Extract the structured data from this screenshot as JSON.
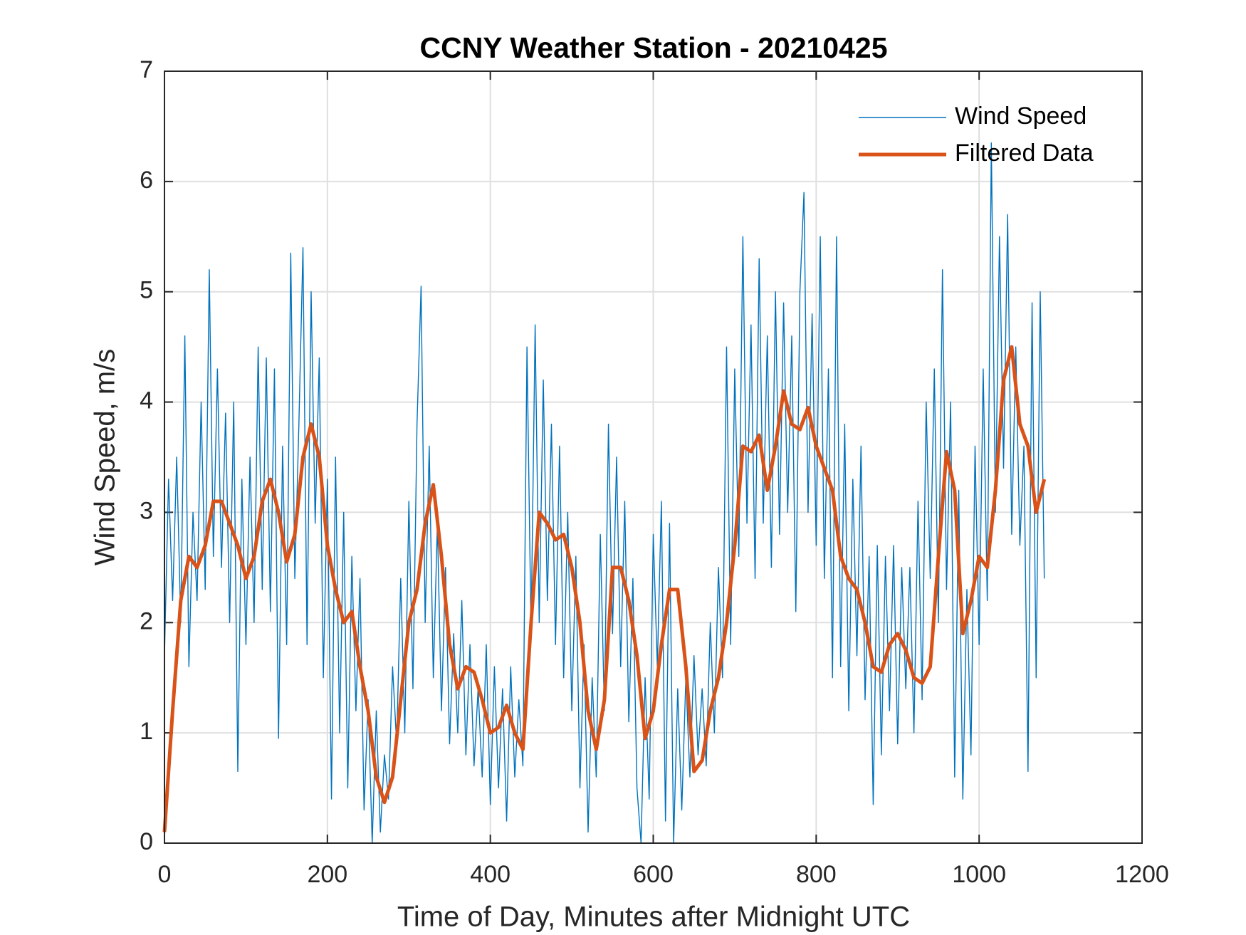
{
  "chart_data": {
    "type": "line",
    "title": "CCNY Weather Station - 20210425",
    "x_label": "Time of Day, Minutes after Midnight UTC",
    "y_label": "Wind Speed, m/s",
    "xlim": [
      0,
      1200
    ],
    "xticks": [
      0,
      200,
      400,
      600,
      800,
      1000,
      1200
    ],
    "ylim": [
      0,
      7
    ],
    "yticks": [
      0,
      1,
      2,
      3,
      4,
      5,
      6,
      7
    ],
    "grid": true,
    "legend": "northeast",
    "series": [
      {
        "name": "Wind Speed",
        "color": "#0072BD",
        "x": [
          0,
          5,
          10,
          15,
          20,
          25,
          30,
          35,
          40,
          45,
          50,
          55,
          60,
          65,
          70,
          75,
          80,
          85,
          90,
          95,
          100,
          105,
          110,
          115,
          120,
          125,
          130,
          135,
          140,
          145,
          150,
          155,
          160,
          165,
          170,
          175,
          180,
          185,
          190,
          195,
          200,
          205,
          210,
          215,
          220,
          225,
          230,
          235,
          240,
          245,
          250,
          255,
          260,
          265,
          270,
          275,
          280,
          285,
          290,
          295,
          300,
          305,
          310,
          315,
          320,
          325,
          330,
          335,
          340,
          345,
          350,
          355,
          360,
          365,
          370,
          375,
          380,
          385,
          390,
          395,
          400,
          405,
          410,
          415,
          420,
          425,
          430,
          435,
          440,
          445,
          450,
          455,
          460,
          465,
          470,
          475,
          480,
          485,
          490,
          495,
          500,
          505,
          510,
          515,
          520,
          525,
          530,
          535,
          540,
          545,
          550,
          555,
          560,
          565,
          570,
          575,
          580,
          585,
          590,
          595,
          600,
          605,
          610,
          615,
          620,
          625,
          630,
          635,
          640,
          645,
          650,
          655,
          660,
          665,
          670,
          675,
          680,
          685,
          690,
          695,
          700,
          705,
          710,
          715,
          720,
          725,
          730,
          735,
          740,
          745,
          750,
          755,
          760,
          765,
          770,
          775,
          780,
          785,
          790,
          795,
          800,
          805,
          810,
          815,
          820,
          825,
          830,
          835,
          840,
          845,
          850,
          855,
          860,
          865,
          870,
          875,
          880,
          885,
          890,
          895,
          900,
          905,
          910,
          915,
          920,
          925,
          930,
          935,
          940,
          945,
          950,
          955,
          960,
          965,
          970,
          975,
          980,
          985,
          990,
          995,
          1000,
          1005,
          1010,
          1015,
          1020,
          1025,
          1030,
          1035,
          1040,
          1045,
          1050,
          1055,
          1060,
          1065,
          1070,
          1075,
          1080
        ],
        "values": [
          1.7,
          3.3,
          2.2,
          3.5,
          2.0,
          4.6,
          1.6,
          3.0,
          2.2,
          4.0,
          2.3,
          5.2,
          2.6,
          4.3,
          2.5,
          3.9,
          2.0,
          4.0,
          0.65,
          3.3,
          1.8,
          3.5,
          2.0,
          4.5,
          2.3,
          4.4,
          2.1,
          4.3,
          0.95,
          3.6,
          1.8,
          5.35,
          2.4,
          3.8,
          5.4,
          1.8,
          5.0,
          2.9,
          4.4,
          1.5,
          3.3,
          0.4,
          3.5,
          1.0,
          3.0,
          0.5,
          2.6,
          1.2,
          2.4,
          0.3,
          1.3,
          0.0,
          1.2,
          0.1,
          0.8,
          0.4,
          1.6,
          0.9,
          2.4,
          1.0,
          3.1,
          1.4,
          3.8,
          5.05,
          2.0,
          3.6,
          1.5,
          2.9,
          1.2,
          2.5,
          0.9,
          1.9,
          1.0,
          2.2,
          0.8,
          1.8,
          0.7,
          1.4,
          0.6,
          1.8,
          0.35,
          1.6,
          0.5,
          1.4,
          0.2,
          1.6,
          0.6,
          1.3,
          0.7,
          4.5,
          1.9,
          4.7,
          2.0,
          4.2,
          2.2,
          3.8,
          1.8,
          3.6,
          1.5,
          3.0,
          1.2,
          2.6,
          0.5,
          1.8,
          0.1,
          1.5,
          0.6,
          2.8,
          1.2,
          3.8,
          1.9,
          3.5,
          1.6,
          3.1,
          1.1,
          2.4,
          0.5,
          0.0,
          1.5,
          0.4,
          2.8,
          1.6,
          3.1,
          0.2,
          2.9,
          0.0,
          1.4,
          0.3,
          1.5,
          0.6,
          1.7,
          0.8,
          1.4,
          0.7,
          2.0,
          1.0,
          2.5,
          1.5,
          4.5,
          1.8,
          4.3,
          2.6,
          5.5,
          2.9,
          4.7,
          2.4,
          5.3,
          2.9,
          4.6,
          2.5,
          5.0,
          2.8,
          4.9,
          3.0,
          4.6,
          2.1,
          5.0,
          5.9,
          3.0,
          4.8,
          2.7,
          5.5,
          2.4,
          4.3,
          1.5,
          5.5,
          1.6,
          3.8,
          1.2,
          3.3,
          1.7,
          3.6,
          1.3,
          2.6,
          0.35,
          2.7,
          0.8,
          2.6,
          1.2,
          2.7,
          0.9,
          2.5,
          1.4,
          2.5,
          1.0,
          3.1,
          1.3,
          4.0,
          2.4,
          4.3,
          2.0,
          5.2,
          2.3,
          4.0,
          0.6,
          3.2,
          0.4,
          2.3,
          0.8,
          3.6,
          1.8,
          4.3,
          2.2,
          6.35,
          3.0,
          5.5,
          3.4,
          5.7,
          2.8,
          4.5,
          2.7,
          3.6,
          0.65,
          4.9,
          1.5,
          5.0,
          2.4
        ]
      },
      {
        "name": "Filtered Data",
        "color": "#D95319",
        "x": [
          0,
          10,
          20,
          30,
          40,
          50,
          60,
          70,
          80,
          90,
          100,
          110,
          120,
          130,
          140,
          150,
          160,
          170,
          180,
          190,
          200,
          210,
          220,
          230,
          240,
          250,
          260,
          270,
          280,
          290,
          300,
          310,
          320,
          330,
          340,
          350,
          360,
          370,
          380,
          390,
          400,
          410,
          420,
          430,
          440,
          450,
          460,
          470,
          480,
          490,
          500,
          510,
          520,
          530,
          540,
          550,
          560,
          570,
          580,
          590,
          600,
          610,
          620,
          630,
          640,
          650,
          660,
          670,
          680,
          690,
          700,
          710,
          720,
          730,
          740,
          750,
          760,
          770,
          780,
          790,
          800,
          810,
          820,
          830,
          840,
          850,
          860,
          870,
          880,
          890,
          900,
          910,
          920,
          930,
          940,
          950,
          960,
          970,
          980,
          990,
          1000,
          1010,
          1020,
          1030,
          1040,
          1050,
          1060,
          1070,
          1080
        ],
        "values": [
          0.1,
          1.2,
          2.2,
          2.6,
          2.5,
          2.7,
          3.1,
          3.1,
          2.9,
          2.7,
          2.4,
          2.6,
          3.1,
          3.3,
          3.0,
          2.55,
          2.8,
          3.5,
          3.8,
          3.5,
          2.7,
          2.3,
          2.0,
          2.1,
          1.6,
          1.2,
          0.6,
          0.37,
          0.6,
          1.3,
          2.0,
          2.3,
          2.9,
          3.25,
          2.6,
          1.8,
          1.4,
          1.6,
          1.55,
          1.3,
          1.0,
          1.05,
          1.25,
          1.0,
          0.85,
          2.0,
          3.0,
          2.9,
          2.75,
          2.8,
          2.5,
          2.0,
          1.2,
          0.85,
          1.3,
          2.5,
          2.5,
          2.2,
          1.7,
          0.95,
          1.2,
          1.8,
          2.3,
          2.3,
          1.6,
          0.65,
          0.75,
          1.2,
          1.5,
          2.0,
          2.7,
          3.6,
          3.55,
          3.7,
          3.2,
          3.6,
          4.1,
          3.8,
          3.75,
          3.95,
          3.6,
          3.4,
          3.2,
          2.6,
          2.4,
          2.3,
          2.0,
          1.6,
          1.55,
          1.8,
          1.9,
          1.75,
          1.5,
          1.45,
          1.6,
          2.6,
          3.55,
          3.2,
          1.9,
          2.2,
          2.6,
          2.5,
          3.2,
          4.2,
          4.5,
          3.8,
          3.6,
          3.0,
          3.3
        ]
      }
    ]
  }
}
